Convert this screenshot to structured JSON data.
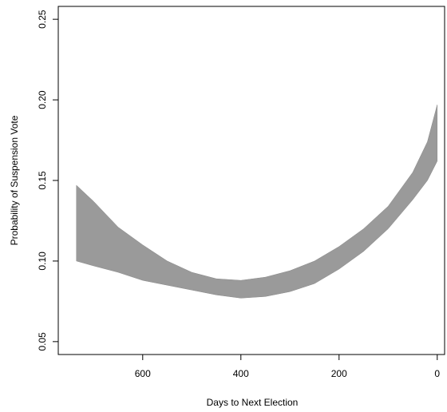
{
  "chart_data": {
    "type": "band",
    "xlabel": "Days to Next Election",
    "ylabel": "Probability of Suspension Vote",
    "x": [
      735,
      700,
      650,
      600,
      550,
      500,
      450,
      400,
      350,
      300,
      250,
      200,
      150,
      100,
      50,
      20,
      0
    ],
    "upper": [
      0.147,
      0.137,
      0.121,
      0.11,
      0.1,
      0.093,
      0.089,
      0.088,
      0.09,
      0.094,
      0.1,
      0.109,
      0.12,
      0.134,
      0.155,
      0.174,
      0.197
    ],
    "lower": [
      0.1,
      0.097,
      0.093,
      0.088,
      0.085,
      0.082,
      0.079,
      0.077,
      0.078,
      0.081,
      0.086,
      0.095,
      0.106,
      0.12,
      0.138,
      0.15,
      0.162
    ],
    "color": "#9a9a9a",
    "xlim": [
      772,
      -15
    ],
    "xticks": [
      600,
      400,
      200,
      0
    ],
    "ylim": [
      0.042,
      0.258
    ],
    "yticks": [
      0.05,
      {
        "value": 0.1,
        "label": "0.10"
      },
      0.15,
      {
        "value": 0.2,
        "label": "0.20"
      },
      0.25
    ]
  }
}
